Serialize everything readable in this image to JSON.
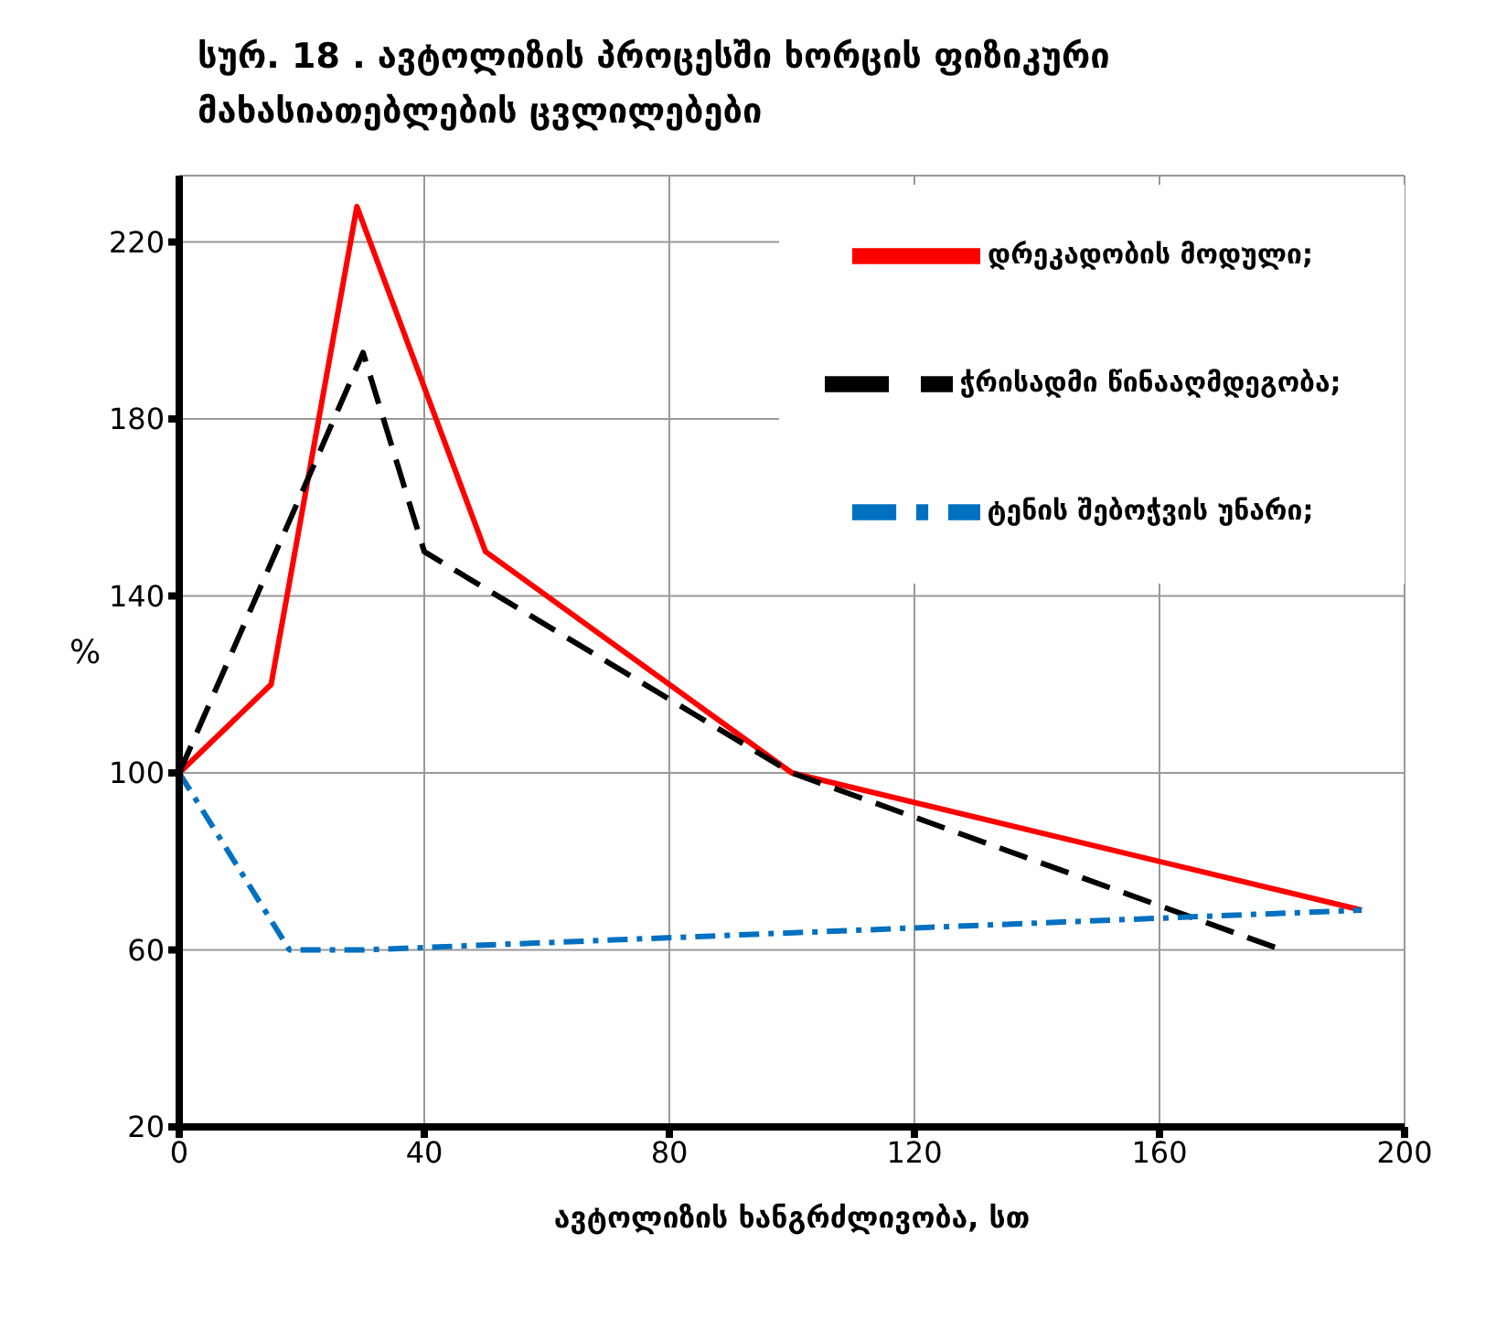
{
  "chart_data": {
    "type": "line",
    "title": "სურ.  18 . ავტოლიზის პროცესში ხორცის ფიზიკური მახასიათებლების ცვლილებები",
    "xlabel": "ავტოლიზის ხანგრძლივობა, სთ",
    "ylabel": "%",
    "series": [
      {
        "name": "დრეკადობის მოდული;",
        "color": "#ff0000",
        "line_style": "solid",
        "x": [
          0,
          15,
          29,
          50,
          100,
          193
        ],
        "values": [
          100,
          120,
          228,
          150,
          100,
          69
        ]
      },
      {
        "name": "ჭრისადმი წინააღმდეგობა;",
        "color": "#000000",
        "line_style": "dashed",
        "x": [
          0,
          30,
          40,
          100,
          180
        ],
        "values": [
          100,
          195,
          150,
          100,
          60
        ]
      },
      {
        "name": "ტენის შებოჭვის უნარი;",
        "color": "#0070c0",
        "line_style": "dashdot",
        "x": [
          0,
          18,
          30,
          193
        ],
        "values": [
          100,
          60,
          60,
          69
        ]
      }
    ],
    "xlim": [
      0,
      200
    ],
    "xticks": [
      0,
      40,
      80,
      120,
      160,
      200
    ],
    "ylim": [
      20,
      235
    ],
    "yticks": [
      20,
      60,
      100,
      140,
      180,
      220
    ],
    "grid": true,
    "legend": "top right",
    "marker": "none"
  }
}
